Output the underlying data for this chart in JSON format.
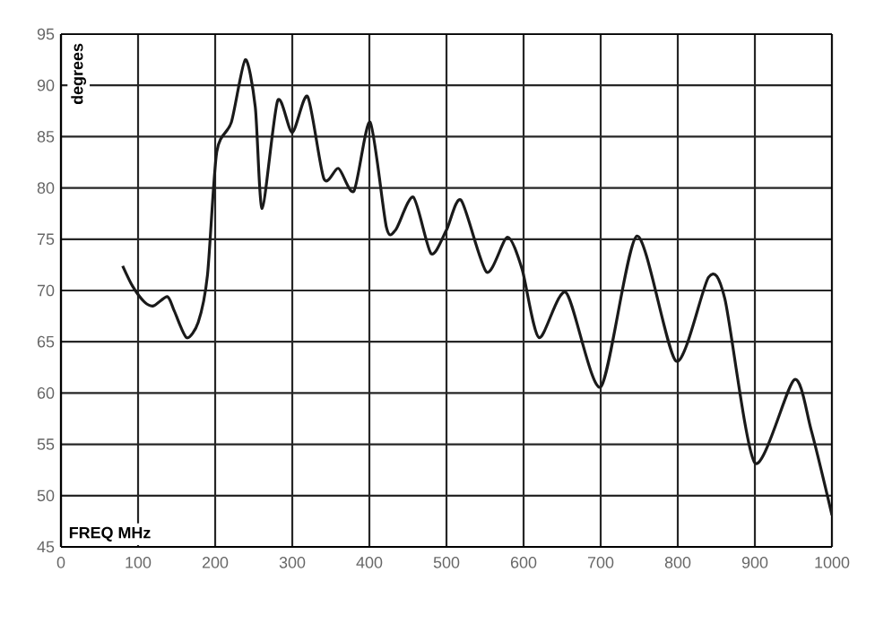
{
  "chart_data": {
    "type": "line",
    "xlabel": "FREQ MHz",
    "ylabel": "degrees",
    "series": [
      {
        "color": "#1a1a1a",
        "x": [
          80,
          93,
          108,
          120,
          138,
          147,
          163,
          178,
          190,
          202,
          221,
          239,
          252,
          261,
          281,
          300,
          320,
          341,
          360,
          380,
          401,
          422,
          434,
          457,
          480,
          500,
          519,
          552,
          579,
          598,
          620,
          655,
          700,
          747,
          798,
          840,
          861,
          900,
          951,
          973,
          1000
        ],
        "values": [
          72.4,
          70.4,
          68.9,
          68.5,
          69.4,
          68.0,
          65.4,
          66.9,
          71.5,
          83.5,
          86.4,
          92.5,
          87.9,
          78.0,
          88.5,
          85.4,
          88.9,
          80.9,
          81.9,
          79.7,
          86.4,
          76.2,
          75.9,
          79.1,
          73.6,
          75.9,
          78.8,
          71.8,
          75.2,
          72.1,
          65.4,
          69.8,
          60.6,
          75.3,
          63.1,
          71.3,
          69.2,
          53.2,
          61.3,
          56.4,
          48.1
        ]
      }
    ],
    "xlim": [
      0,
      1000
    ],
    "ylim": [
      45,
      95
    ],
    "xticks": [
      0,
      100,
      200,
      300,
      400,
      500,
      600,
      700,
      800,
      900,
      1000
    ],
    "yticks": [
      45,
      50,
      55,
      60,
      65,
      70,
      75,
      80,
      85,
      90,
      95
    ],
    "grid": true,
    "marker": "none",
    "line_style": "solid"
  }
}
